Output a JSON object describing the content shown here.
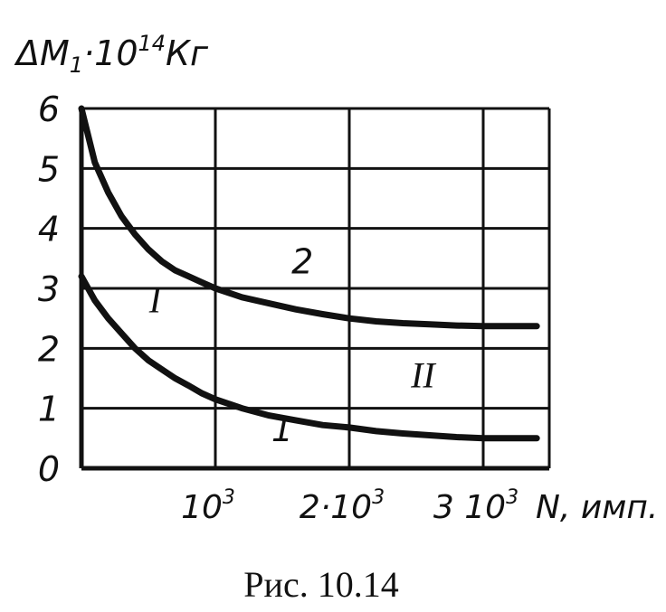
{
  "chart_data": {
    "type": "line",
    "ylabel_parts": {
      "prefix": "ΔM",
      "sub": "1",
      "mid": "·10",
      "sup": "14",
      "unit": "Кг"
    },
    "xlabel": "N, имп.",
    "caption": "Рис. 10.14",
    "xlim": [
      0,
      3500
    ],
    "ylim": [
      0,
      6
    ],
    "grid": true,
    "x_ticks": [
      {
        "value": 1000,
        "base": "10",
        "sup": "3"
      },
      {
        "value": 2000,
        "base": "2·10",
        "sup": "3"
      },
      {
        "value": 3000,
        "base": "3 10",
        "sup": "3"
      }
    ],
    "y_ticks": [
      "0",
      "1",
      "2",
      "3",
      "4",
      "5",
      "6"
    ],
    "series": [
      {
        "name": "1",
        "x": [
          0,
          100,
          200,
          300,
          400,
          500,
          600,
          700,
          800,
          900,
          1000,
          1200,
          1400,
          1600,
          1800,
          2000,
          2200,
          2400,
          2600,
          2800,
          3000,
          3200,
          3400
        ],
        "y": [
          3.2,
          2.8,
          2.5,
          2.25,
          2.0,
          1.8,
          1.65,
          1.5,
          1.38,
          1.25,
          1.15,
          1.0,
          0.88,
          0.8,
          0.72,
          0.68,
          0.62,
          0.58,
          0.55,
          0.52,
          0.5,
          0.5,
          0.5
        ]
      },
      {
        "name": "2",
        "x": [
          0,
          100,
          200,
          300,
          400,
          500,
          600,
          700,
          800,
          900,
          1000,
          1200,
          1400,
          1600,
          1800,
          2000,
          2200,
          2400,
          2600,
          2800,
          3000,
          3200,
          3400
        ],
        "y": [
          6.0,
          5.1,
          4.6,
          4.2,
          3.9,
          3.65,
          3.45,
          3.3,
          3.2,
          3.1,
          3.0,
          2.85,
          2.75,
          2.65,
          2.57,
          2.5,
          2.45,
          2.42,
          2.4,
          2.38,
          2.37,
          2.37,
          2.37
        ]
      }
    ],
    "annotations": [
      {
        "text": "1",
        "x": 1500,
        "y": 0.45
      },
      {
        "text": "2",
        "x": 1650,
        "y": 3.25
      },
      {
        "text": "I",
        "x": 550,
        "y": 2.6
      },
      {
        "text": "II",
        "x": 2550,
        "y": 1.35
      }
    ]
  }
}
